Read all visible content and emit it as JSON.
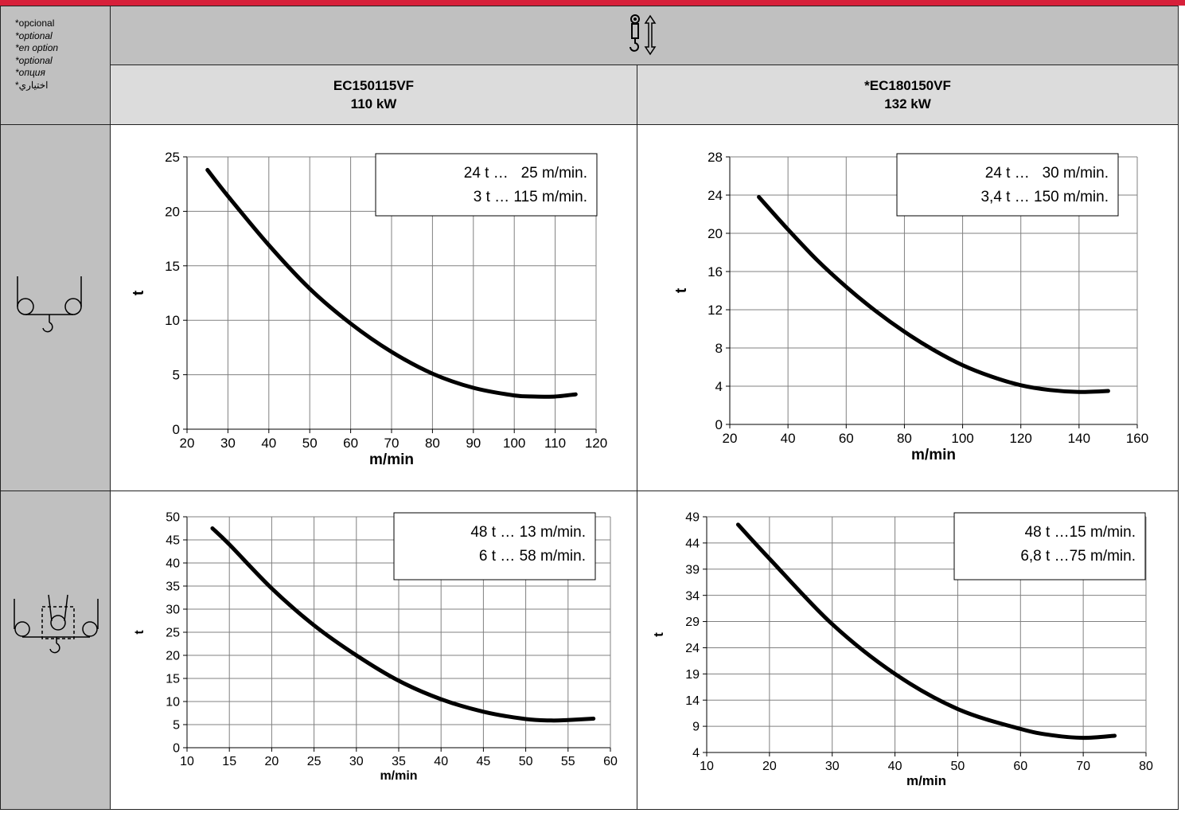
{
  "optional_labels": [
    "*opcional",
    "*optional",
    "*en option",
    "*optional",
    "*опция",
    "*اختياري"
  ],
  "colors": {
    "accent": "#d7203a",
    "header_gray": "#c0c0c0",
    "subheader_gray": "#dcdcdc"
  },
  "header_icon": "hook-hoist-updown-icon",
  "models": [
    {
      "name": "EC150115VF",
      "power": "110 kW"
    },
    {
      "name": "*EC180150VF",
      "power": "132 kW"
    }
  ],
  "row_icons": [
    "two-fall-reeving-icon",
    "four-fall-reeving-icon"
  ],
  "chart_data": [
    {
      "type": "line",
      "xlabel": "m/min",
      "ylabel": "t",
      "xlim": [
        20,
        120
      ],
      "ylim": [
        0,
        25
      ],
      "xticks": [
        "20",
        "30",
        "40",
        "50",
        "60",
        "70",
        "80",
        "90",
        "100",
        "110",
        "120"
      ],
      "yticks": [
        "0",
        "5",
        "10",
        "15",
        "20",
        "25"
      ],
      "annotation": [
        "24 t …   25 m/min.",
        "3 t … 115 m/min."
      ],
      "grid": true,
      "x": [
        25,
        30,
        40,
        50,
        60,
        70,
        80,
        90,
        100,
        105,
        110,
        115
      ],
      "y": [
        23.8,
        21.4,
        16.9,
        12.9,
        9.7,
        7.1,
        5.1,
        3.8,
        3.1,
        3.0,
        3.0,
        3.2
      ]
    },
    {
      "type": "line",
      "xlabel": "m/min",
      "ylabel": "t",
      "xlim": [
        20,
        160
      ],
      "ylim": [
        0,
        28
      ],
      "xticks": [
        "20",
        "40",
        "60",
        "80",
        "100",
        "120",
        "140",
        "160"
      ],
      "yticks": [
        "0",
        "4",
        "8",
        "12",
        "16",
        "20",
        "24",
        "28"
      ],
      "annotation": [
        "24 t …   30 m/min.",
        "3,4 t … 150 m/min."
      ],
      "grid": true,
      "x": [
        30,
        40,
        50,
        60,
        70,
        80,
        90,
        100,
        110,
        120,
        130,
        140,
        150
      ],
      "y": [
        23.8,
        20.4,
        17.2,
        14.4,
        11.9,
        9.7,
        7.8,
        6.2,
        5.0,
        4.1,
        3.6,
        3.4,
        3.5
      ]
    },
    {
      "type": "line",
      "xlabel": "m/min",
      "ylabel": "t",
      "xlim": [
        10,
        60
      ],
      "ylim": [
        0,
        50
      ],
      "xticks": [
        "10",
        "15",
        "20",
        "25",
        "30",
        "35",
        "40",
        "45",
        "50",
        "55",
        "60"
      ],
      "yticks": [
        "0",
        "5",
        "10",
        "15",
        "20",
        "25",
        "30",
        "35",
        "40",
        "45",
        "50"
      ],
      "annotation": [
        "48 t … 13 m/min.",
        "6 t … 58 m/min."
      ],
      "grid": true,
      "x": [
        13,
        15,
        20,
        25,
        30,
        35,
        40,
        45,
        50,
        53,
        55,
        58
      ],
      "y": [
        47.5,
        44.0,
        34.5,
        26.5,
        20.0,
        14.5,
        10.5,
        7.8,
        6.2,
        5.9,
        6.0,
        6.3
      ]
    },
    {
      "type": "line",
      "xlabel": "m/min",
      "ylabel": "t",
      "xlim": [
        10,
        80
      ],
      "ylim": [
        4,
        49
      ],
      "xticks": [
        "10",
        "20",
        "30",
        "40",
        "50",
        "60",
        "70",
        "80"
      ],
      "yticks": [
        "4",
        "9",
        "14",
        "19",
        "24",
        "29",
        "34",
        "39",
        "44",
        "49"
      ],
      "annotation": [
        "48 t …15 m/min.",
        "6,8 t …75 m/min."
      ],
      "grid": true,
      "x": [
        15,
        20,
        30,
        40,
        50,
        60,
        65,
        70,
        75
      ],
      "y": [
        47.5,
        41.0,
        28.5,
        19.0,
        12.3,
        8.5,
        7.3,
        6.8,
        7.2
      ]
    }
  ]
}
